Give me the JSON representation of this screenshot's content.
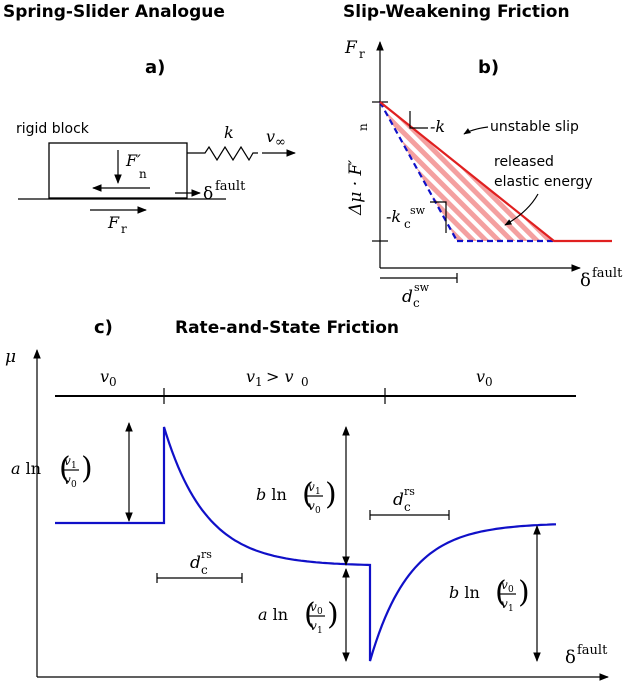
{
  "titles": {
    "spring_slider": "Spring-Slider Analogue",
    "slip_weakening": "Slip-Weakening Friction",
    "rate_state": "Rate-and-State Friction"
  },
  "panels": {
    "a": "a)",
    "b": "b)",
    "c": "c)"
  },
  "panel_a": {
    "rigid_block": "rigid block",
    "spring_constant": "k",
    "velocity": "v",
    "velocity_sub": "∞",
    "normal_force": "F′",
    "normal_force_sub": "n",
    "slip": "δ",
    "slip_sup": "fault",
    "friction_force": "F",
    "friction_force_sub": "r"
  },
  "panel_b": {
    "y_axis": "F",
    "y_axis_sub": "r",
    "x_axis": "δ",
    "x_axis_sup": "fault",
    "stress_drop": "Δμ · F′",
    "stress_drop_sub": "n",
    "slope_k": "-k",
    "critical_stiffness": "-k",
    "critical_stiffness_sub": "c",
    "critical_stiffness_sup": "sw",
    "dc": "d",
    "dc_sub": "c",
    "dc_sup": "sw",
    "unstable_slip": "unstable slip",
    "released_energy_1": "released",
    "released_energy_2": "elastic energy",
    "colors": {
      "slip_curve": "#e02020",
      "critical_line": "#1010c8",
      "hatch": "#f4a0a0"
    }
  },
  "panel_c": {
    "y_axis": "μ",
    "x_axis": "δ",
    "x_axis_sup": "fault",
    "phase_1": "v",
    "phase_1_sub": "0",
    "phase_2": "v",
    "phase_2_sub": "1",
    "phase_2_rel": "> v",
    "phase_2_rel_sub": "0",
    "phase_3": "v",
    "phase_3_sub": "0",
    "a_coef": "a",
    "b_coef": "b",
    "ln": "ln",
    "frac_v1": "v",
    "frac_v1_sub": "1",
    "frac_v0": "v",
    "frac_v0_sub": "0",
    "dc": "d",
    "dc_sup": "rs",
    "dc_sub": "c",
    "colors": {
      "curve": "#1010c8"
    }
  }
}
